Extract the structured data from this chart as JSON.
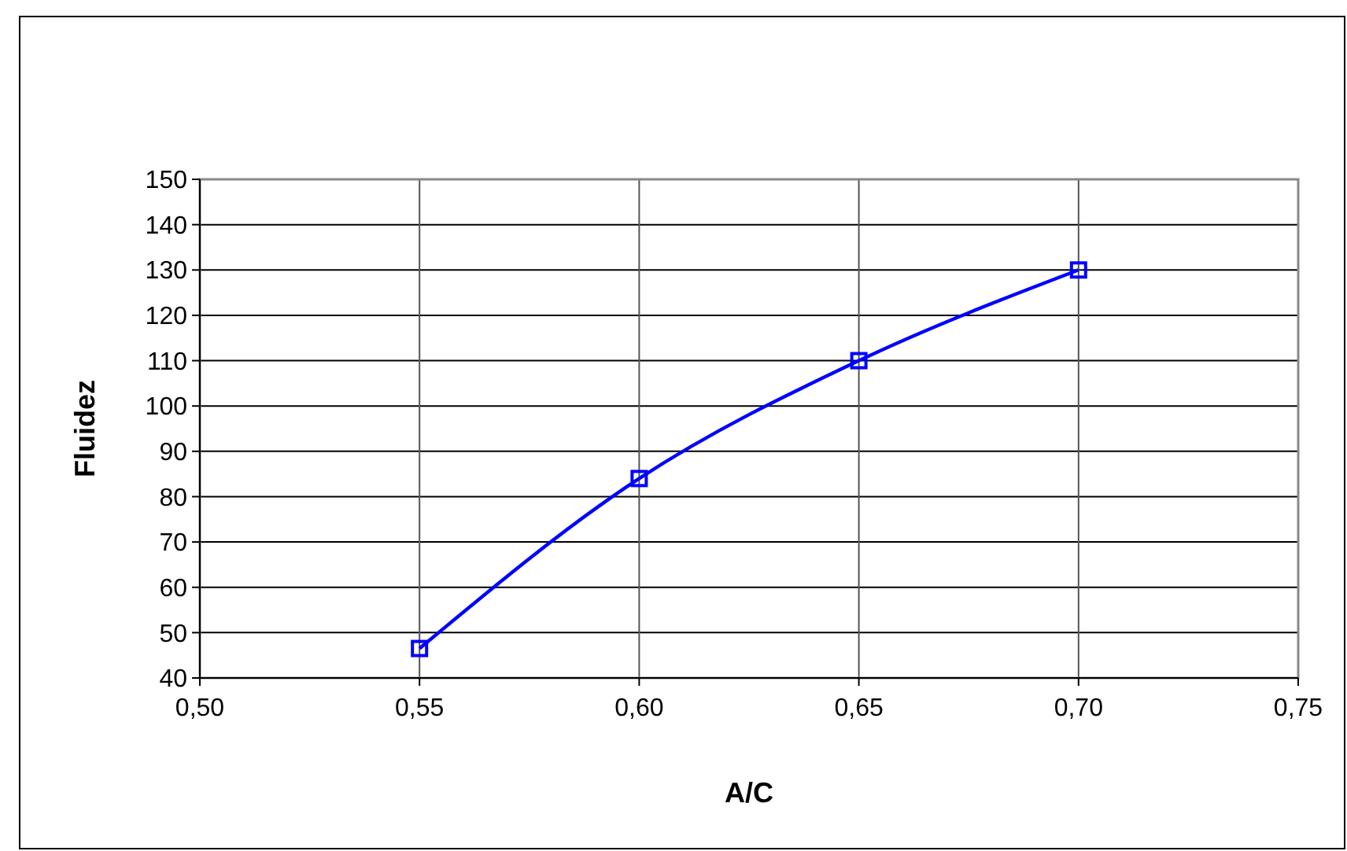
{
  "chart_data": {
    "type": "line",
    "xlabel": "A/C",
    "ylabel": "Fluidez",
    "x": [
      0.55,
      0.6,
      0.65,
      0.7
    ],
    "series": [
      {
        "color": "#0000ff",
        "values": [
          46.5,
          84,
          110,
          130
        ]
      }
    ],
    "xlim": [
      0.5,
      0.75
    ],
    "xticks": [
      {
        "value": 0.5,
        "label": "0,50"
      },
      {
        "value": 0.55,
        "label": "0,55"
      },
      {
        "value": 0.6,
        "label": "0,60"
      },
      {
        "value": 0.65,
        "label": "0,65"
      },
      {
        "value": 0.7,
        "label": "0,70"
      },
      {
        "value": 0.75,
        "label": "0,75"
      }
    ],
    "ylim": [
      40,
      150
    ],
    "yticks": [
      40,
      50,
      60,
      70,
      80,
      90,
      100,
      110,
      120,
      130,
      140,
      150
    ],
    "grid": true,
    "marker": "square",
    "line_style": "solid"
  }
}
